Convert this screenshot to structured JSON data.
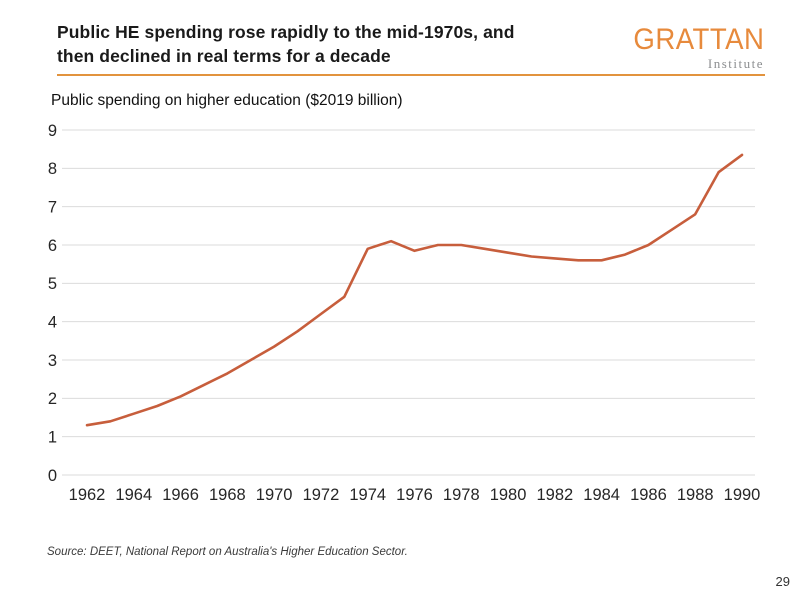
{
  "slide": {
    "title_line1": "Public HE spending rose rapidly to the mid-1970s, and",
    "title_line2": "then declined in real terms for a decade",
    "source": "Source: DEET, National Report on Australia's Higher Education Sector.",
    "page_number": "29"
  },
  "logo": {
    "name": "GRATTAN",
    "subtitle": "Institute",
    "name_color": "#E78A3C",
    "subtitle_color": "#8C8E90",
    "rule_color": "#E2933E"
  },
  "chart_data": {
    "type": "line",
    "title": "Public spending on higher education ($2019 billion)",
    "xlabel": "",
    "ylabel": "",
    "x": [
      1962,
      1963,
      1964,
      1965,
      1966,
      1967,
      1968,
      1969,
      1970,
      1971,
      1972,
      1973,
      1974,
      1975,
      1976,
      1977,
      1978,
      1979,
      1980,
      1981,
      1982,
      1983,
      1984,
      1985,
      1986,
      1987,
      1988,
      1989,
      1990
    ],
    "values": [
      1.3,
      1.4,
      1.6,
      1.8,
      2.05,
      2.35,
      2.65,
      3.0,
      3.35,
      3.75,
      4.2,
      4.65,
      5.9,
      6.1,
      5.85,
      6.0,
      6.0,
      5.9,
      5.8,
      5.7,
      5.65,
      5.6,
      5.6,
      5.75,
      6.0,
      6.4,
      6.8,
      7.9,
      8.35
    ],
    "x_ticks": [
      1962,
      1964,
      1966,
      1968,
      1970,
      1972,
      1974,
      1976,
      1978,
      1980,
      1982,
      1984,
      1986,
      1988,
      1990
    ],
    "y_ticks": [
      0,
      1,
      2,
      3,
      4,
      5,
      6,
      7,
      8,
      9
    ],
    "xlim": [
      1962,
      1990
    ],
    "ylim": [
      0,
      9
    ],
    "grid": "horizontal",
    "legend_position": "none",
    "line_color": "#C75E3C",
    "grid_color": "#DBDBDB",
    "tick_label_color": "#262626"
  }
}
